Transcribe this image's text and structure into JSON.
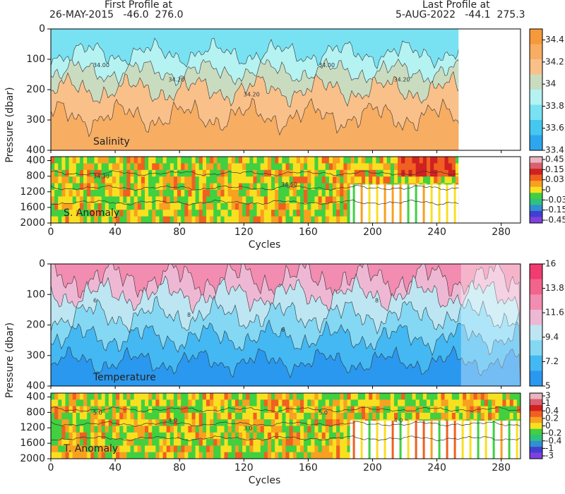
{
  "header": {
    "first_label": "First Profile at",
    "first_info": "26-MAY-2015   -46.0  276.0",
    "last_label": "Last Profile at",
    "last_info": "5-AUG-2022   -44.1  275.3"
  },
  "chart_data": [
    {
      "type": "heatmap",
      "label": "Salinity",
      "ylabel": "Pressure (dbar)",
      "xlim": [
        0,
        292
      ],
      "xticks": [
        0,
        40,
        80,
        120,
        160,
        200,
        240,
        280
      ],
      "ylim": [
        400,
        0
      ],
      "yticks": [
        0,
        100,
        200,
        300,
        400
      ],
      "contour_labels": [
        "34.00",
        "34.20",
        "34.20",
        "34.00",
        "34.20"
      ],
      "colorbar": {
        "clim": [
          33.4,
          34.5
        ],
        "ticks": [
          34.4,
          34.2,
          34,
          33.8,
          33.6,
          33.4
        ],
        "colors": [
          "#f5993a",
          "#f7ad62",
          "#f9c08a",
          "#c9dcc0",
          "#b5f2f2",
          "#78e2f2",
          "#44c8f0",
          "#2ea6ee"
        ]
      }
    },
    {
      "type": "heatmap",
      "label": "S. Anomaly",
      "xlabel": "Cycles",
      "xlim": [
        0,
        292
      ],
      "xticks": [
        0,
        40,
        80,
        120,
        160,
        200,
        240,
        280
      ],
      "ylim": [
        2000,
        300
      ],
      "yticks": [
        400,
        800,
        1200,
        1600,
        2000
      ],
      "contour_labels": [
        "34.30",
        "34.60"
      ],
      "colorbar": {
        "ticks": [
          0.45,
          0.15,
          0.03,
          0,
          -0.03,
          -0.15,
          -0.45
        ],
        "colors": [
          "#e8b4c0",
          "#d86070",
          "#d02020",
          "#f06020",
          "#f8a020",
          "#f8e020",
          "#40d040",
          "#30c080",
          "#3090d0",
          "#4040d0",
          "#8040e0"
        ]
      }
    },
    {
      "type": "heatmap",
      "label": "Temperature",
      "ylabel": "Pressure (dbar)",
      "xlim": [
        0,
        292
      ],
      "xticks": [
        0,
        40,
        80,
        120,
        160,
        200,
        240,
        280
      ],
      "ylim": [
        400,
        0
      ],
      "yticks": [
        0,
        100,
        200,
        300,
        400
      ],
      "contour_labels": [
        "6",
        "8",
        "6",
        "8"
      ],
      "colorbar": {
        "clim": [
          5,
          16
        ],
        "ticks": [
          16,
          13.8,
          11.6,
          9.4,
          7.2,
          5
        ],
        "colors": [
          "#f03c6e",
          "#f2648c",
          "#f28cb0",
          "#eeb8d4",
          "#bde6f2",
          "#84d8f4",
          "#44b8f2",
          "#2a98ee"
        ]
      }
    },
    {
      "type": "heatmap",
      "label": "T. Anomaly",
      "xlabel": "Cycles",
      "xlim": [
        0,
        292
      ],
      "xticks": [
        0,
        40,
        80,
        120,
        160,
        200,
        240,
        280
      ],
      "ylim": [
        2000,
        300
      ],
      "yticks": [
        400,
        800,
        1200,
        1600,
        2000
      ],
      "contour_labels": [
        "5.0",
        "4.0",
        "3.0",
        "5.0",
        "4.0"
      ],
      "colorbar": {
        "ticks": [
          3,
          1,
          0.4,
          0.2,
          0,
          -0.2,
          -0.4,
          -1,
          -3
        ],
        "colors": [
          "#e8b4c0",
          "#d86070",
          "#d02020",
          "#f06020",
          "#f8a020",
          "#f8e020",
          "#40d040",
          "#30c080",
          "#3090d0",
          "#4040d0",
          "#8040e0"
        ]
      }
    }
  ]
}
